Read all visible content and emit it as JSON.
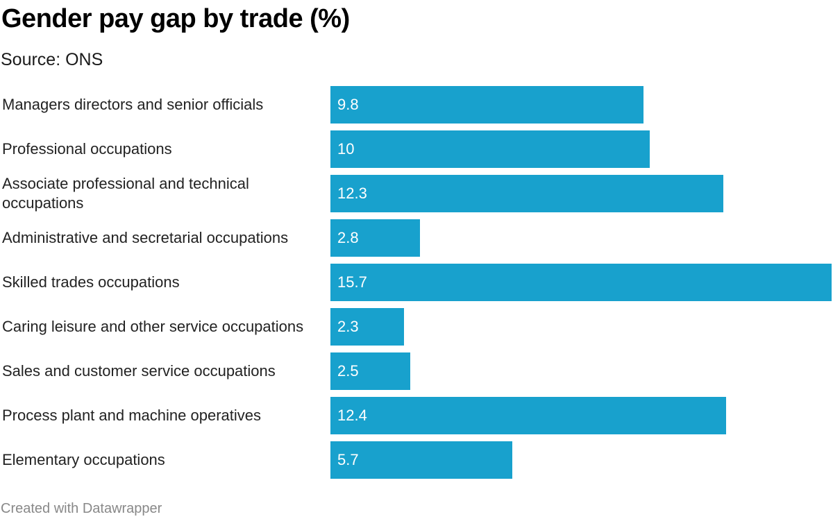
{
  "header": {
    "title": "Gender pay gap by trade (%)",
    "subtitle": "Source: ONS"
  },
  "footer": {
    "credit": "Created with Datawrapper"
  },
  "colors": {
    "bar": "#18a1cd",
    "bar_label": "#ffffff"
  },
  "chart_data": {
    "type": "bar",
    "orientation": "horizontal",
    "title": "Gender pay gap by trade (%)",
    "subtitle": "Source: ONS",
    "xlim": [
      0,
      15.7
    ],
    "grid": false,
    "categories": [
      "Managers directors and senior officials",
      "Professional occupations",
      "Associate professional and technical occupations",
      "Administrative and secretarial occupations",
      "Skilled trades occupations",
      "Caring leisure and other service occupations",
      "Sales and customer service occupations",
      "Process plant and machine operatives",
      "Elementary occupations"
    ],
    "values": [
      9.8,
      10,
      12.3,
      2.8,
      15.7,
      2.3,
      2.5,
      12.4,
      5.7
    ],
    "value_labels": [
      "9.8",
      "10",
      "12.3",
      "2.8",
      "15.7",
      "2.3",
      "2.5",
      "12.4",
      "5.7"
    ]
  }
}
